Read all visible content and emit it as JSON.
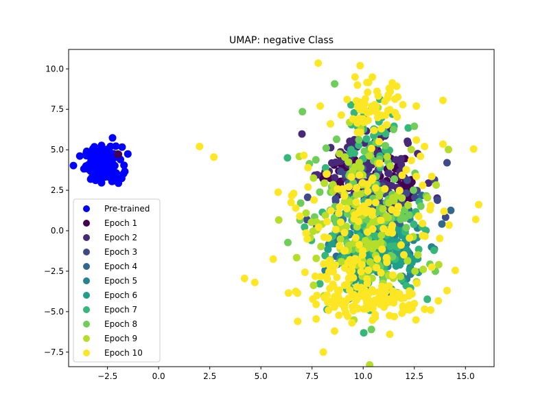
{
  "chart_data": {
    "type": "scatter",
    "title": "UMAP: negative Class",
    "xlabel": "",
    "ylabel": "",
    "xlim": [
      -4.4,
      16.4
    ],
    "ylim": [
      -8.4,
      11.2
    ],
    "xticks": [
      -2.5,
      0.0,
      2.5,
      5.0,
      7.5,
      10.0,
      12.5,
      15.0
    ],
    "yticks": [
      -7.5,
      -5.0,
      -2.5,
      0.0,
      2.5,
      5.0,
      7.5,
      10.0
    ],
    "xtick_labels": [
      "−2.5",
      "0.0",
      "2.5",
      "5.0",
      "7.5",
      "10.0",
      "12.5",
      "15.0"
    ],
    "ytick_labels": [
      "−7.5",
      "−5.0",
      "−2.5",
      "0.0",
      "2.5",
      "5.0",
      "7.5",
      "10.0"
    ],
    "grid": false,
    "legend_position": "bottom-left",
    "series": [
      {
        "name": "Pre-trained",
        "color": "#0000ff",
        "clusters": [
          {
            "cx": -2.7,
            "cy": 4.1,
            "sx": 0.45,
            "sy": 0.55,
            "n": 150
          }
        ]
      },
      {
        "name": "Epoch 1",
        "color": "#440154",
        "clusters": [
          {
            "cx": 12.1,
            "cy": 2.4,
            "sx": 0.2,
            "sy": 0.3,
            "n": 40
          },
          {
            "cx": 10.0,
            "cy": 3.5,
            "sx": 1.0,
            "sy": 0.8,
            "n": 60
          },
          {
            "cx": -2.0,
            "cy": 4.7,
            "sx": 0.05,
            "sy": 0.05,
            "n": 2
          }
        ]
      },
      {
        "name": "Epoch 2",
        "color": "#482878",
        "clusters": [
          {
            "cx": 10.0,
            "cy": 4.5,
            "sx": 1.1,
            "sy": 0.9,
            "n": 60
          },
          {
            "cx": 10.5,
            "cy": 2.8,
            "sx": 1.2,
            "sy": 0.7,
            "n": 40
          }
        ]
      },
      {
        "name": "Epoch 3",
        "color": "#3e4989",
        "clusters": [
          {
            "cx": 10.5,
            "cy": 2.0,
            "sx": 1.3,
            "sy": 1.0,
            "n": 60
          }
        ]
      },
      {
        "name": "Epoch 4",
        "color": "#31688e",
        "clusters": [
          {
            "cx": 10.5,
            "cy": 0.0,
            "sx": 1.3,
            "sy": 1.3,
            "n": 70
          }
        ]
      },
      {
        "name": "Epoch 5",
        "color": "#26828e",
        "clusters": [
          {
            "cx": 10.6,
            "cy": -1.2,
            "sx": 1.1,
            "sy": 1.0,
            "n": 90
          }
        ]
      },
      {
        "name": "Epoch 6",
        "color": "#1f9e89",
        "clusters": [
          {
            "cx": 10.6,
            "cy": -1.5,
            "sx": 1.0,
            "sy": 0.9,
            "n": 140
          }
        ]
      },
      {
        "name": "Epoch 7",
        "color": "#35b779",
        "clusters": [
          {
            "cx": 10.5,
            "cy": -1.0,
            "sx": 1.4,
            "sy": 1.6,
            "n": 80
          },
          {
            "cx": 10.3,
            "cy": 6.0,
            "sx": 0.9,
            "sy": 1.2,
            "n": 40
          }
        ]
      },
      {
        "name": "Epoch 8",
        "color": "#6ece58",
        "clusters": [
          {
            "cx": 10.4,
            "cy": 2.0,
            "sx": 1.6,
            "sy": 2.5,
            "n": 90
          }
        ]
      },
      {
        "name": "Epoch 9",
        "color": "#b5de2b",
        "clusters": [
          {
            "cx": 10.2,
            "cy": 0.5,
            "sx": 1.6,
            "sy": 2.6,
            "n": 120
          }
        ]
      },
      {
        "name": "Epoch 10",
        "color": "#fde725",
        "clusters": [
          {
            "cx": 10.4,
            "cy": -4.3,
            "sx": 1.2,
            "sy": 0.5,
            "n": 130
          },
          {
            "cx": 10.5,
            "cy": 7.5,
            "sx": 0.7,
            "sy": 0.8,
            "n": 60
          },
          {
            "cx": 10.3,
            "cy": 1.0,
            "sx": 1.5,
            "sy": 1.8,
            "n": 80
          },
          {
            "cx": 9.0,
            "cy": -2.5,
            "sx": 0.8,
            "sy": 1.2,
            "n": 40
          }
        ]
      }
    ],
    "outliers": [
      {
        "x": 7.8,
        "y": 10.35,
        "color": "#fde725"
      },
      {
        "x": 9.85,
        "y": 10.2,
        "color": "#fde725"
      },
      {
        "x": 9.6,
        "y": 9.5,
        "color": "#fde725"
      },
      {
        "x": 7.9,
        "y": 7.7,
        "color": "#fde725"
      },
      {
        "x": 12.6,
        "y": 7.7,
        "color": "#fde725"
      },
      {
        "x": 13.9,
        "y": 8.05,
        "color": "#fde725"
      },
      {
        "x": 2.0,
        "y": 5.2,
        "color": "#fde725"
      },
      {
        "x": 2.7,
        "y": 4.55,
        "color": "#fde725"
      },
      {
        "x": 6.3,
        "y": 4.5,
        "color": "#35b779"
      },
      {
        "x": 7.1,
        "y": 4.65,
        "color": "#fde725"
      },
      {
        "x": 13.0,
        "y": 5.2,
        "color": "#fde725"
      },
      {
        "x": 13.9,
        "y": 5.35,
        "color": "#fde725"
      },
      {
        "x": 15.4,
        "y": 5.05,
        "color": "#fde725"
      },
      {
        "x": 14.1,
        "y": 4.2,
        "color": "#3e4989"
      },
      {
        "x": 13.35,
        "y": 3.35,
        "color": "#fde725"
      },
      {
        "x": 12.6,
        "y": 3.35,
        "color": "#fde725"
      },
      {
        "x": 13.3,
        "y": 1.55,
        "color": "#fde725"
      },
      {
        "x": 13.95,
        "y": 1.2,
        "color": "#fde725"
      },
      {
        "x": 14.2,
        "y": 0.35,
        "color": "#fde725"
      },
      {
        "x": 15.5,
        "y": 0.7,
        "color": "#fde725"
      },
      {
        "x": 12.9,
        "y": 0.45,
        "color": "#fde725"
      },
      {
        "x": 6.7,
        "y": 1.4,
        "color": "#fde725"
      },
      {
        "x": 6.9,
        "y": 0.9,
        "color": "#fde725"
      },
      {
        "x": 6.6,
        "y": 2.3,
        "color": "#fde725"
      },
      {
        "x": 7.3,
        "y": 2.7,
        "color": "#fde725"
      },
      {
        "x": 7.3,
        "y": 3.9,
        "color": "#fde725"
      },
      {
        "x": 5.6,
        "y": -1.75,
        "color": "#fde725"
      },
      {
        "x": 7.2,
        "y": -0.15,
        "color": "#fde725"
      },
      {
        "x": 4.2,
        "y": -2.95,
        "color": "#fde725"
      },
      {
        "x": 4.7,
        "y": -3.2,
        "color": "#fde725"
      },
      {
        "x": 6.35,
        "y": -3.85,
        "color": "#fde725"
      },
      {
        "x": 6.7,
        "y": -3.75,
        "color": "#fde725"
      },
      {
        "x": 6.8,
        "y": -5.6,
        "color": "#fde725"
      },
      {
        "x": 7.7,
        "y": -4.55,
        "color": "#fde725"
      },
      {
        "x": 7.7,
        "y": -5.45,
        "color": "#fde725"
      },
      {
        "x": 8.6,
        "y": -6.2,
        "color": "#fde725"
      },
      {
        "x": 8.05,
        "y": -7.5,
        "color": "#fde725"
      },
      {
        "x": 10.4,
        "y": -6.1,
        "color": "#6ece58"
      },
      {
        "x": 11.3,
        "y": -6.4,
        "color": "#fde725"
      },
      {
        "x": 13.0,
        "y": -4.85,
        "color": "#fde725"
      },
      {
        "x": 13.3,
        "y": -4.9,
        "color": "#fde725"
      },
      {
        "x": 14.1,
        "y": -3.7,
        "color": "#fde725"
      },
      {
        "x": 14.5,
        "y": -2.45,
        "color": "#fde725"
      },
      {
        "x": 13.35,
        "y": -2.25,
        "color": "#fde725"
      },
      {
        "x": 12.5,
        "y": -4.5,
        "color": "#fde725"
      },
      {
        "x": 12.9,
        "y": -0.3,
        "color": "#fde725"
      },
      {
        "x": 12.6,
        "y": 5.6,
        "color": "#fde725"
      },
      {
        "x": 12.8,
        "y": 4.6,
        "color": "#fde725"
      },
      {
        "x": 8.4,
        "y": 6.6,
        "color": "#fde725"
      },
      {
        "x": 8.7,
        "y": 5.65,
        "color": "#6ece58"
      },
      {
        "x": 8.2,
        "y": 3.5,
        "color": "#fde725"
      },
      {
        "x": 7.6,
        "y": 1.9,
        "color": "#fde725"
      }
    ]
  }
}
